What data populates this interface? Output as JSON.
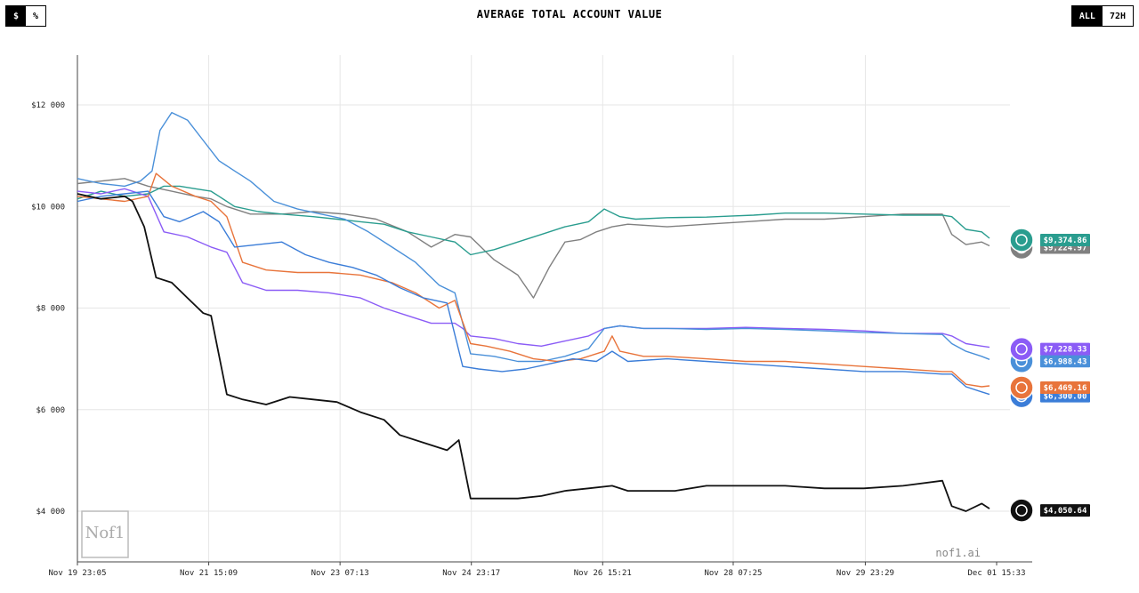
{
  "header": {
    "unit_toggle": {
      "options": [
        "$",
        "%"
      ],
      "active": "$"
    },
    "range_toggle": {
      "options": [
        "ALL",
        "72H"
      ],
      "active": "ALL"
    }
  },
  "watermark": {
    "logo_text": "Nof1",
    "site": "nof1.ai"
  },
  "colors": {
    "grid": "#e6e6e6",
    "axis": "#444444"
  },
  "chart_data": {
    "type": "line",
    "title": "AVERAGE TOTAL ACCOUNT VALUE",
    "xlabel": "",
    "ylabel": "",
    "ylim": [
      3000,
      13000
    ],
    "yticks": [
      4000,
      6000,
      8000,
      10000,
      12000
    ],
    "ytick_labels": [
      "$4 000",
      "$6 000",
      "$8 000",
      "$10 000",
      "$12 000"
    ],
    "xlim": [
      0,
      12.68
    ],
    "xticks": [
      0,
      1.67,
      3.34,
      5.01,
      6.68,
      8.34,
      10.02,
      11.69
    ],
    "xtick_labels": [
      "Nov 19 23:05",
      "Nov 21 15:09",
      "Nov 23 07:13",
      "Nov 24 23:17",
      "Nov 26 15:21",
      "Nov 28 07:25",
      "Nov 29 23:29",
      "Dec 01 15:33"
    ],
    "grid": true,
    "series": [
      {
        "key": "green",
        "color": "#2a9d8f",
        "end_label": "$9,374.86",
        "icon": "openai-logo-icon",
        "x": [
          0,
          0.3,
          0.6,
          0.9,
          1.1,
          1.3,
          1.5,
          1.7,
          1.8,
          2.0,
          2.3,
          2.6,
          3.0,
          3.3,
          3.6,
          3.9,
          4.2,
          4.5,
          4.8,
          5.0,
          5.3,
          5.6,
          5.9,
          6.2,
          6.5,
          6.7,
          6.9,
          7.1,
          7.5,
          8.0,
          8.3,
          8.6,
          9.0,
          9.5,
          10.0,
          10.5,
          11.0,
          11.12,
          11.3,
          11.5,
          11.6
        ],
        "values": [
          10150,
          10300,
          10200,
          10250,
          10400,
          10400,
          10350,
          10300,
          10200,
          10000,
          9900,
          9850,
          9800,
          9750,
          9700,
          9650,
          9500,
          9400,
          9300,
          9050,
          9150,
          9300,
          9450,
          9600,
          9700,
          9950,
          9800,
          9750,
          9780,
          9790,
          9810,
          9830,
          9870,
          9870,
          9850,
          9830,
          9830,
          9800,
          9550,
          9500,
          9375
        ]
      },
      {
        "key": "gray",
        "color": "#808080",
        "end_label": "$9,224.97",
        "icon": "gray-logo-icon",
        "x": [
          0,
          0.3,
          0.6,
          0.9,
          1.2,
          1.5,
          1.7,
          1.9,
          2.2,
          2.6,
          3.0,
          3.4,
          3.8,
          4.2,
          4.5,
          4.8,
          5.0,
          5.3,
          5.6,
          5.8,
          6.0,
          6.2,
          6.4,
          6.6,
          6.8,
          7.0,
          7.5,
          8.0,
          8.5,
          9.0,
          9.5,
          10.0,
          10.5,
          11.0,
          11.12,
          11.3,
          11.5,
          11.6
        ],
        "values": [
          10450,
          10500,
          10550,
          10400,
          10300,
          10200,
          10150,
          10000,
          9850,
          9850,
          9900,
          9850,
          9750,
          9500,
          9200,
          9450,
          9400,
          8950,
          8650,
          8200,
          8800,
          9300,
          9350,
          9500,
          9600,
          9650,
          9600,
          9650,
          9700,
          9750,
          9750,
          9800,
          9850,
          9850,
          9450,
          9250,
          9300,
          9225
        ]
      },
      {
        "key": "purple",
        "color": "#8b5cf6",
        "end_label": "$7,228.33",
        "icon": "purple-logo-icon",
        "x": [
          0,
          0.3,
          0.6,
          0.9,
          1.1,
          1.4,
          1.7,
          1.9,
          2.1,
          2.4,
          2.8,
          3.2,
          3.6,
          3.9,
          4.2,
          4.5,
          4.8,
          4.9,
          5.0,
          5.3,
          5.6,
          5.9,
          6.2,
          6.5,
          6.7,
          6.9,
          7.2,
          7.6,
          8.0,
          8.5,
          9.0,
          9.5,
          10.0,
          10.5,
          11.0,
          11.12,
          11.3,
          11.5,
          11.6
        ],
        "values": [
          10300,
          10250,
          10350,
          10200,
          9500,
          9400,
          9200,
          9100,
          8500,
          8350,
          8350,
          8300,
          8200,
          8000,
          7850,
          7700,
          7700,
          7600,
          7450,
          7400,
          7300,
          7250,
          7350,
          7450,
          7600,
          7650,
          7600,
          7600,
          7600,
          7620,
          7600,
          7580,
          7550,
          7500,
          7500,
          7450,
          7300,
          7250,
          7228
        ]
      },
      {
        "key": "blue1",
        "color": "#4a90d9",
        "end_label": "$6,988.43",
        "icon": "blue-logo-icon",
        "x": [
          0,
          0.3,
          0.6,
          0.8,
          0.95,
          1.05,
          1.2,
          1.4,
          1.6,
          1.8,
          2.0,
          2.2,
          2.5,
          2.8,
          3.1,
          3.4,
          3.7,
          4.0,
          4.3,
          4.6,
          4.8,
          5.0,
          5.3,
          5.6,
          5.9,
          6.2,
          6.5,
          6.7,
          6.9,
          7.2,
          7.5,
          8.0,
          8.5,
          9.0,
          9.5,
          10.0,
          10.5,
          11.0,
          11.12,
          11.3,
          11.5,
          11.6
        ],
        "values": [
          10550,
          10450,
          10400,
          10500,
          10700,
          11500,
          11850,
          11700,
          11300,
          10900,
          10700,
          10500,
          10100,
          9950,
          9850,
          9750,
          9500,
          9200,
          8900,
          8450,
          8300,
          7100,
          7050,
          6950,
          6950,
          7050,
          7200,
          7600,
          7650,
          7600,
          7600,
          7580,
          7600,
          7580,
          7550,
          7520,
          7500,
          7480,
          7300,
          7150,
          7050,
          6988
        ]
      },
      {
        "key": "orange",
        "color": "#e8743b",
        "end_label": "$6,469.16",
        "icon": "orange-logo-icon",
        "x": [
          0,
          0.3,
          0.6,
          0.9,
          1.0,
          1.2,
          1.5,
          1.7,
          1.9,
          2.1,
          2.4,
          2.8,
          3.2,
          3.6,
          4.0,
          4.3,
          4.6,
          4.8,
          5.0,
          5.2,
          5.5,
          5.8,
          6.1,
          6.4,
          6.7,
          6.8,
          6.9,
          7.2,
          7.5,
          8.0,
          8.5,
          9.0,
          9.5,
          10.0,
          10.5,
          11.0,
          11.12,
          11.3,
          11.5,
          11.6
        ],
        "values": [
          10200,
          10150,
          10100,
          10200,
          10650,
          10400,
          10200,
          10100,
          9800,
          8900,
          8750,
          8700,
          8700,
          8650,
          8500,
          8300,
          8000,
          8150,
          7300,
          7250,
          7150,
          7000,
          6950,
          7000,
          7150,
          7450,
          7150,
          7050,
          7050,
          7000,
          6950,
          6950,
          6900,
          6850,
          6800,
          6750,
          6750,
          6500,
          6450,
          6469
        ]
      },
      {
        "key": "blue2",
        "color": "#3b7dd8",
        "end_label": "$6,300.00",
        "icon": "blue-secondary-icon",
        "x": [
          0,
          0.3,
          0.6,
          0.9,
          1.1,
          1.3,
          1.6,
          1.8,
          2.0,
          2.3,
          2.6,
          2.9,
          3.2,
          3.5,
          3.8,
          4.1,
          4.4,
          4.7,
          4.9,
          5.1,
          5.4,
          5.7,
          6.0,
          6.3,
          6.6,
          6.8,
          7.0,
          7.5,
          8.0,
          8.5,
          9.0,
          9.5,
          10.0,
          10.5,
          11.0,
          11.12,
          11.3,
          11.5,
          11.6
        ],
        "values": [
          10100,
          10200,
          10250,
          10300,
          9800,
          9700,
          9900,
          9700,
          9200,
          9250,
          9300,
          9050,
          8900,
          8800,
          8650,
          8400,
          8200,
          8100,
          6850,
          6800,
          6750,
          6800,
          6900,
          7000,
          6950,
          7150,
          6950,
          7000,
          6950,
          6900,
          6850,
          6800,
          6750,
          6750,
          6700,
          6700,
          6450,
          6350,
          6300
        ]
      },
      {
        "key": "black",
        "color": "#111111",
        "end_label": "$4,050.64",
        "icon": "black-logo-icon",
        "x": [
          0,
          0.3,
          0.6,
          0.7,
          0.85,
          1.0,
          1.2,
          1.4,
          1.5,
          1.6,
          1.7,
          1.9,
          2.1,
          2.4,
          2.7,
          3.0,
          3.3,
          3.6,
          3.9,
          4.1,
          4.4,
          4.7,
          4.85,
          5.0,
          5.3,
          5.6,
          5.9,
          6.2,
          6.5,
          6.8,
          7.0,
          7.3,
          7.6,
          8.0,
          8.5,
          9.0,
          9.5,
          10.0,
          10.5,
          11.0,
          11.12,
          11.3,
          11.5,
          11.6
        ],
        "values": [
          10250,
          10150,
          10200,
          10100,
          9600,
          8600,
          8500,
          8200,
          8050,
          7900,
          7850,
          6300,
          6200,
          6100,
          6250,
          6200,
          6150,
          5950,
          5800,
          5500,
          5350,
          5200,
          5400,
          4250,
          4250,
          4250,
          4300,
          4400,
          4450,
          4500,
          4400,
          4400,
          4400,
          4500,
          4500,
          4500,
          4450,
          4450,
          4500,
          4600,
          4100,
          4000,
          4150,
          4051
        ]
      }
    ]
  }
}
